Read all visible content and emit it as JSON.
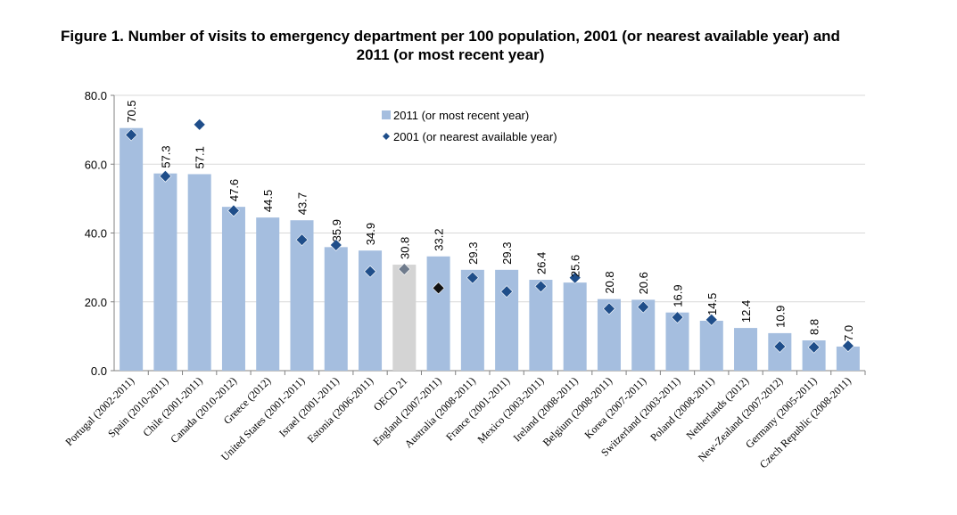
{
  "chart_data": {
    "type": "bar",
    "title_lines": [
      "Figure 1. Number of visits to emergency department per 100 population, 2001 (or nearest available year) and",
      "2011 (or most recent year)"
    ],
    "ylim": [
      0,
      80
    ],
    "yticks": [
      "0.0",
      "20.0",
      "40.0",
      "60.0",
      "80.0"
    ],
    "ytick_values": [
      0,
      20,
      40,
      60,
      80
    ],
    "grid": true,
    "legend_position": "top-center",
    "categories": [
      "Portugal (2002-2011)",
      "Spain (2010-2011)",
      "Chile (2001-2011)",
      "Canada (2010-2012)",
      "Greece (2012)",
      "United States (2001-2011)",
      "Israel (2001-2011)",
      "Estonia (2006-2011)",
      "OECD 21",
      "England (2007-2011)",
      "Australia (2008-2011)",
      "France (2001-2011)",
      "Mexico (2003-2011)",
      "Ireland (2008-2011)",
      "Belgium (2008-2011)",
      "Korea (2007-2011)",
      "Switzerland (2003-2011)",
      "Poland (2008-2011)",
      "Netherlands (2012)",
      "New-Zealand (2007-2012)",
      "Germany (2005-2011)",
      "Czech Republic (2008-2011)"
    ],
    "series": [
      {
        "name": "2011 (or most recent year)",
        "kind": "bar",
        "values": [
          70.5,
          57.3,
          57.1,
          47.6,
          44.5,
          43.7,
          35.9,
          34.9,
          30.8,
          33.2,
          29.3,
          29.3,
          26.4,
          25.6,
          20.8,
          20.6,
          16.9,
          14.5,
          12.4,
          10.9,
          8.8,
          7.0
        ],
        "labels": [
          "70.5",
          "57.3",
          "57.1",
          "47.6",
          "44.5",
          "43.7",
          "35.9",
          "34.9",
          "30.8",
          "33.2",
          "29.3",
          "29.3",
          "26.4",
          "25.6",
          "20.8",
          "20.6",
          "16.9",
          "14.5",
          "12.4",
          "10.9",
          "8.8",
          "7.0"
        ]
      },
      {
        "name": "2001 (or nearest available year)",
        "kind": "marker",
        "values": [
          68.5,
          56.5,
          71.5,
          46.5,
          null,
          38.0,
          36.5,
          28.8,
          29.5,
          24.0,
          27.0,
          23.0,
          24.5,
          27.0,
          18.0,
          18.5,
          15.5,
          14.8,
          null,
          7.0,
          6.8,
          7.2
        ]
      }
    ],
    "highlight_category": "OECD 21",
    "colors": {
      "bar": "#a5bedf",
      "bar_highlight": "#d4d4d4",
      "marker": "#1f4e8a",
      "marker_highlight_oecd": "#6f7b8c",
      "marker_highlight_england": "#111111",
      "grid": "#d9d9d9",
      "axis": "#808080"
    }
  }
}
